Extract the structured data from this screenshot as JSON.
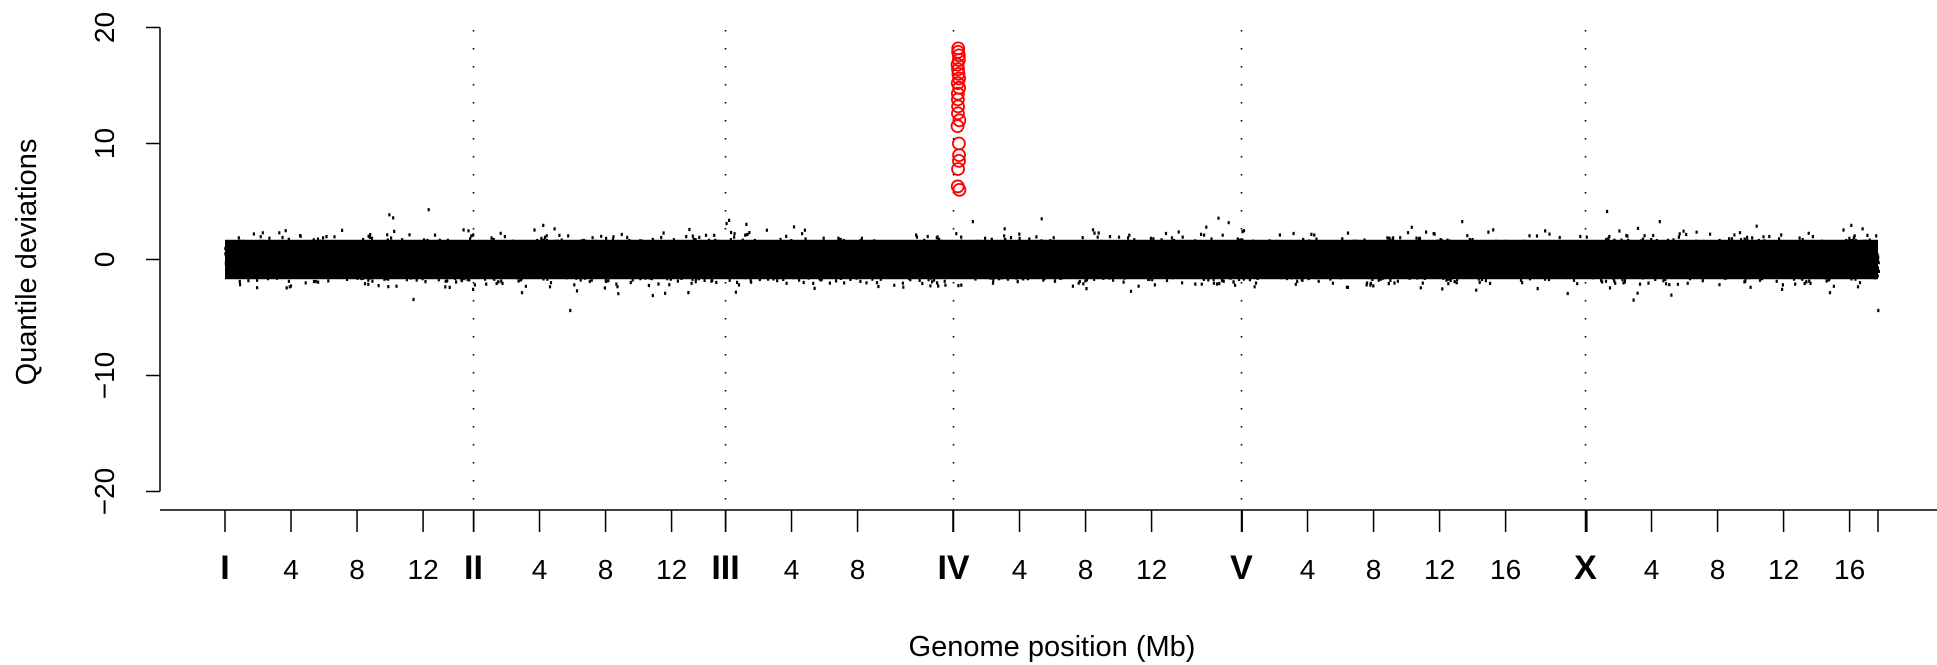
{
  "chart_data": {
    "type": "scatter",
    "xlabel": "Genome position (Mb)",
    "ylabel": "Quantile deviations",
    "ylim": [
      -20,
      20
    ],
    "yticks": [
      -20,
      -10,
      0,
      10,
      20
    ],
    "ytick_labels": [
      "−20",
      "−10",
      "0",
      "10",
      "20"
    ],
    "grid": false,
    "chromosome_separators": "dotted vertical lines at chromosome starts",
    "chromosomes": [
      {
        "name": "I",
        "length_mb": 15.07,
        "ticks_mb": [
          4,
          8,
          12
        ],
        "tick_labels": [
          "4",
          "8",
          "12"
        ]
      },
      {
        "name": "II",
        "length_mb": 15.28,
        "ticks_mb": [
          4,
          8,
          12
        ],
        "tick_labels": [
          "4",
          "8",
          "12"
        ]
      },
      {
        "name": "III",
        "length_mb": 13.78,
        "ticks_mb": [
          4,
          8
        ],
        "tick_labels": [
          "4",
          "8"
        ]
      },
      {
        "name": "IV",
        "length_mb": 17.49,
        "ticks_mb": [
          4,
          8,
          12
        ],
        "tick_labels": [
          "4",
          "8",
          "12"
        ]
      },
      {
        "name": "V",
        "length_mb": 20.92,
        "ticks_mb": [
          4,
          8,
          12,
          16
        ],
        "tick_labels": [
          "4",
          "8",
          "12",
          "16"
        ]
      },
      {
        "name": "X",
        "length_mb": 17.72,
        "ticks_mb": [
          4,
          8,
          12,
          16
        ],
        "tick_labels": [
          "4",
          "8",
          "12",
          "16"
        ]
      }
    ],
    "series": [
      {
        "kind": "background",
        "color": "#000000",
        "marker": "dot",
        "description_values": "dense band of small points spanning all chromosomes, y roughly between -4 and 4",
        "band_y_range": [
          -4,
          4
        ]
      },
      {
        "kind": "highlighted",
        "color": "#ff0000",
        "marker": "open-circle",
        "chromosome": "IV",
        "position_mb": 0.3,
        "values": [
          6.0,
          6.3,
          7.8,
          8.5,
          9.0,
          10.0,
          11.5,
          12.0,
          12.6,
          13.2,
          13.8,
          14.3,
          14.8,
          15.2,
          15.6,
          16.0,
          16.4,
          16.8,
          17.2,
          17.6,
          17.9,
          18.2
        ]
      }
    ]
  },
  "colors": {
    "points": "#000000",
    "highlight": "#ff0000",
    "axis": "#000000",
    "separator": "#000000"
  }
}
